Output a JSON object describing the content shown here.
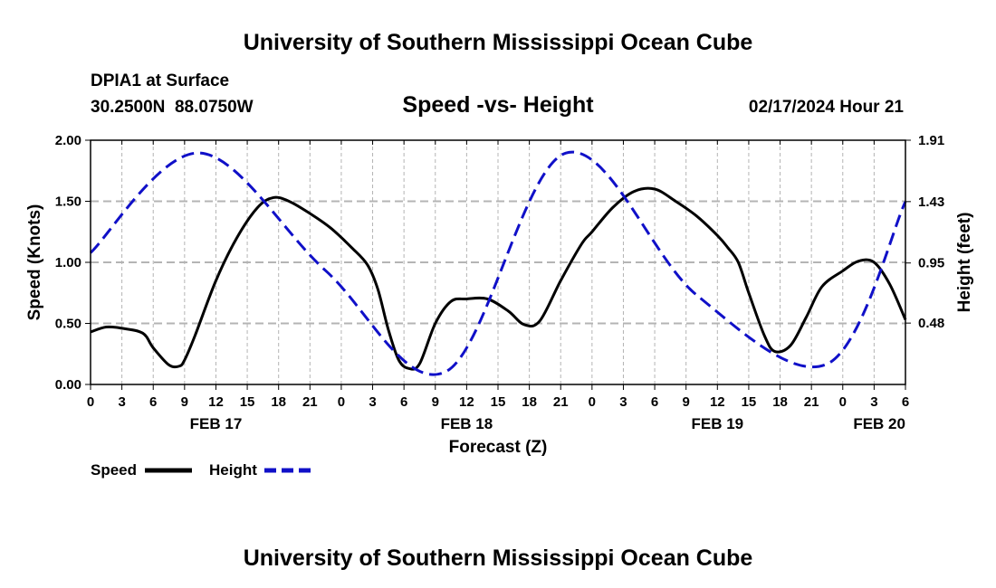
{
  "header": {
    "title": "University of Southern Mississippi Ocean Cube",
    "station": "DPIA1 at Surface",
    "coords": "30.2500N  88.0750W",
    "subtitle": "Speed -vs- Height",
    "datetime": "02/17/2024 Hour 21"
  },
  "footer": {
    "title": "University of Southern Mississippi Ocean Cube"
  },
  "legend": {
    "speed_label": "Speed",
    "height_label": "Height"
  },
  "chart_data": {
    "type": "line",
    "title": "Speed -vs- Height",
    "xlabel": "Forecast (Z)",
    "ylabel": "Speed (Knots)",
    "ylabel_right": "Height (feet)",
    "x_unit": "hours since FEB 17 00Z",
    "xlim": [
      0,
      78
    ],
    "ylim": [
      0,
      2.0
    ],
    "ylim_right": [
      0,
      1.91
    ],
    "x_ticks": [
      {
        "x": 0,
        "label": "0"
      },
      {
        "x": 3,
        "label": "3"
      },
      {
        "x": 6,
        "label": "6"
      },
      {
        "x": 9,
        "label": "9"
      },
      {
        "x": 12,
        "label": "12"
      },
      {
        "x": 15,
        "label": "15"
      },
      {
        "x": 18,
        "label": "18"
      },
      {
        "x": 21,
        "label": "21"
      },
      {
        "x": 24,
        "label": "0"
      },
      {
        "x": 27,
        "label": "3"
      },
      {
        "x": 30,
        "label": "6"
      },
      {
        "x": 33,
        "label": "9"
      },
      {
        "x": 36,
        "label": "12"
      },
      {
        "x": 39,
        "label": "15"
      },
      {
        "x": 42,
        "label": "18"
      },
      {
        "x": 45,
        "label": "21"
      },
      {
        "x": 48,
        "label": "0"
      },
      {
        "x": 51,
        "label": "3"
      },
      {
        "x": 54,
        "label": "6"
      },
      {
        "x": 57,
        "label": "9"
      },
      {
        "x": 60,
        "label": "12"
      },
      {
        "x": 63,
        "label": "15"
      },
      {
        "x": 66,
        "label": "18"
      },
      {
        "x": 69,
        "label": "21"
      },
      {
        "x": 72,
        "label": "0"
      },
      {
        "x": 75,
        "label": "3"
      },
      {
        "x": 78,
        "label": "6"
      }
    ],
    "date_labels": [
      {
        "x": 12,
        "label": "FEB 17"
      },
      {
        "x": 36,
        "label": "FEB 18"
      },
      {
        "x": 60,
        "label": "FEB 19"
      },
      {
        "x": 75.5,
        "label": "FEB 20"
      }
    ],
    "y_ticks": [
      {
        "y": 0,
        "label": "0.00"
      },
      {
        "y": 0.5,
        "label": "0.50"
      },
      {
        "y": 1.0,
        "label": "1.00"
      },
      {
        "y": 1.5,
        "label": "1.50"
      },
      {
        "y": 2.0,
        "label": "2.00"
      }
    ],
    "y_ticks_right": [
      {
        "y": 0.48,
        "label": "0.48"
      },
      {
        "y": 0.95,
        "label": "0.95"
      },
      {
        "y": 1.43,
        "label": "1.43"
      },
      {
        "y": 1.91,
        "label": "1.91"
      }
    ],
    "grid": true,
    "series": [
      {
        "name": "Speed",
        "axis": "left",
        "color": "#000000",
        "dash": "solid",
        "x": [
          0,
          1.5,
          3,
          5,
          6,
          7.5,
          8.5,
          9,
          10,
          12,
          14,
          16,
          17.5,
          19,
          21,
          23,
          25,
          26.5,
          27.5,
          28.5,
          29.5,
          30.5,
          31.5,
          33,
          34.5,
          36,
          38,
          40,
          41.5,
          43,
          45,
          47,
          48,
          50,
          52,
          54,
          56,
          58,
          60,
          61,
          62,
          63,
          64.5,
          65.5,
          67,
          68.5,
          70,
          72,
          73.5,
          75,
          76.5,
          78
        ],
        "values": [
          0.43,
          0.47,
          0.46,
          0.42,
          0.3,
          0.16,
          0.15,
          0.2,
          0.4,
          0.85,
          1.2,
          1.45,
          1.53,
          1.5,
          1.4,
          1.28,
          1.12,
          0.98,
          0.78,
          0.45,
          0.2,
          0.13,
          0.17,
          0.5,
          0.68,
          0.7,
          0.7,
          0.6,
          0.49,
          0.52,
          0.85,
          1.15,
          1.25,
          1.45,
          1.58,
          1.6,
          1.5,
          1.38,
          1.22,
          1.12,
          1.0,
          0.75,
          0.4,
          0.27,
          0.32,
          0.55,
          0.8,
          0.93,
          1.01,
          1.0,
          0.82,
          0.53
        ]
      },
      {
        "name": "Height",
        "axis": "right",
        "color": "#1010c8",
        "dash": "dashed",
        "x": [
          0,
          10.5,
          22.5,
          34,
          45.5,
          58,
          70.5,
          78
        ],
        "values": [
          1.03,
          1.81,
          0.89,
          0.1,
          1.81,
          0.7,
          0.16,
          1.43
        ]
      }
    ]
  }
}
